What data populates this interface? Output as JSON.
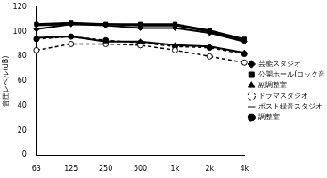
{
  "chart_data": {
    "type": "line",
    "y_label": "音圧レベル(dB)",
    "categories": [
      "63",
      "125",
      "250",
      "500",
      "1k",
      "2k",
      "4k"
    ],
    "series": [
      {
        "name": "芸能スタジオ",
        "color": "#000000",
        "marker": "diamond",
        "line_style": "solid",
        "values": [
          102,
          106,
          105,
          103,
          103,
          99,
          92
        ]
      },
      {
        "name": "公開ホール(ロック音楽)",
        "color": "#000000",
        "marker": "square",
        "line_style": "solid",
        "values": [
          106,
          107,
          106,
          106,
          106,
          101,
          94
        ]
      },
      {
        "name": "副調整室",
        "color": "#000000",
        "marker": "triangle",
        "line_style": "solid",
        "values": [
          95,
          96,
          92,
          92,
          89,
          88,
          83
        ]
      },
      {
        "name": "ドラマスタジオ",
        "color": "#000000",
        "marker": "open_circle",
        "line_style": "dashed",
        "values": [
          85,
          90,
          90,
          89,
          85,
          80,
          75
        ]
      },
      {
        "name": "ポスト録音スタジオ",
        "color": "#000000",
        "marker": "none",
        "line_style": "solid",
        "values": [
          105,
          106,
          106,
          105,
          105,
          100,
          93
        ]
      },
      {
        "name": "調整室",
        "color": "#000000",
        "marker": "circle",
        "line_style": "dashed",
        "values": [
          94,
          96,
          93,
          91,
          88,
          87,
          82
        ]
      }
    ],
    "ylim": [
      0,
      120
    ],
    "yticks": [
      0,
      20,
      40,
      60,
      80,
      100,
      120
    ],
    "grid": false,
    "legend": "right"
  }
}
